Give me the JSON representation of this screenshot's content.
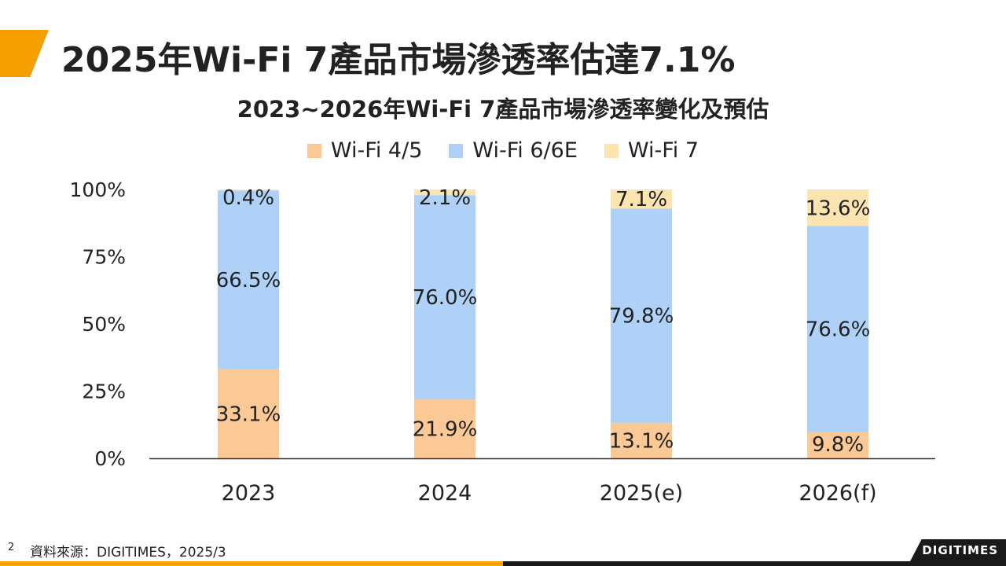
{
  "slide": {
    "title": "2025年Wi-Fi 7產品市場滲透率估達7.1%",
    "page_number": "2",
    "source": "資料來源：DIGITIMES，2025/3",
    "logo": "DIGITIMES"
  },
  "colors": {
    "accent": "#f5a000",
    "wifi45": "#fbc996",
    "wifi66e": "#afd1f8",
    "wifi7": "#fbe4b0"
  },
  "chart_data": {
    "type": "bar",
    "stacked": true,
    "title": "2023~2026年Wi-Fi 7產品市場滲透率變化及預估",
    "categories": [
      "2023",
      "2024",
      "2025(e)",
      "2026(f)"
    ],
    "series": [
      {
        "name": "Wi-Fi 4/5",
        "color": "#fbc996",
        "values": [
          33.1,
          21.9,
          13.1,
          9.8
        ],
        "labels": [
          "33.1%",
          "21.9%",
          "13.1%",
          "9.8%"
        ]
      },
      {
        "name": "Wi-Fi 6/6E",
        "color": "#afd1f8",
        "values": [
          66.5,
          76.0,
          79.8,
          76.6
        ],
        "labels": [
          "66.5%",
          "76.0%",
          "79.8%",
          "76.6%"
        ]
      },
      {
        "name": "Wi-Fi 7",
        "color": "#fbe4b0",
        "values": [
          0.4,
          2.1,
          7.1,
          13.6
        ],
        "labels": [
          "0.4%",
          "2.1%",
          "7.1%",
          "13.6%"
        ]
      }
    ],
    "yticks": [
      "0%",
      "25%",
      "50%",
      "75%",
      "100%"
    ],
    "ylim": [
      0,
      100
    ],
    "legend": "top",
    "grid": false
  }
}
